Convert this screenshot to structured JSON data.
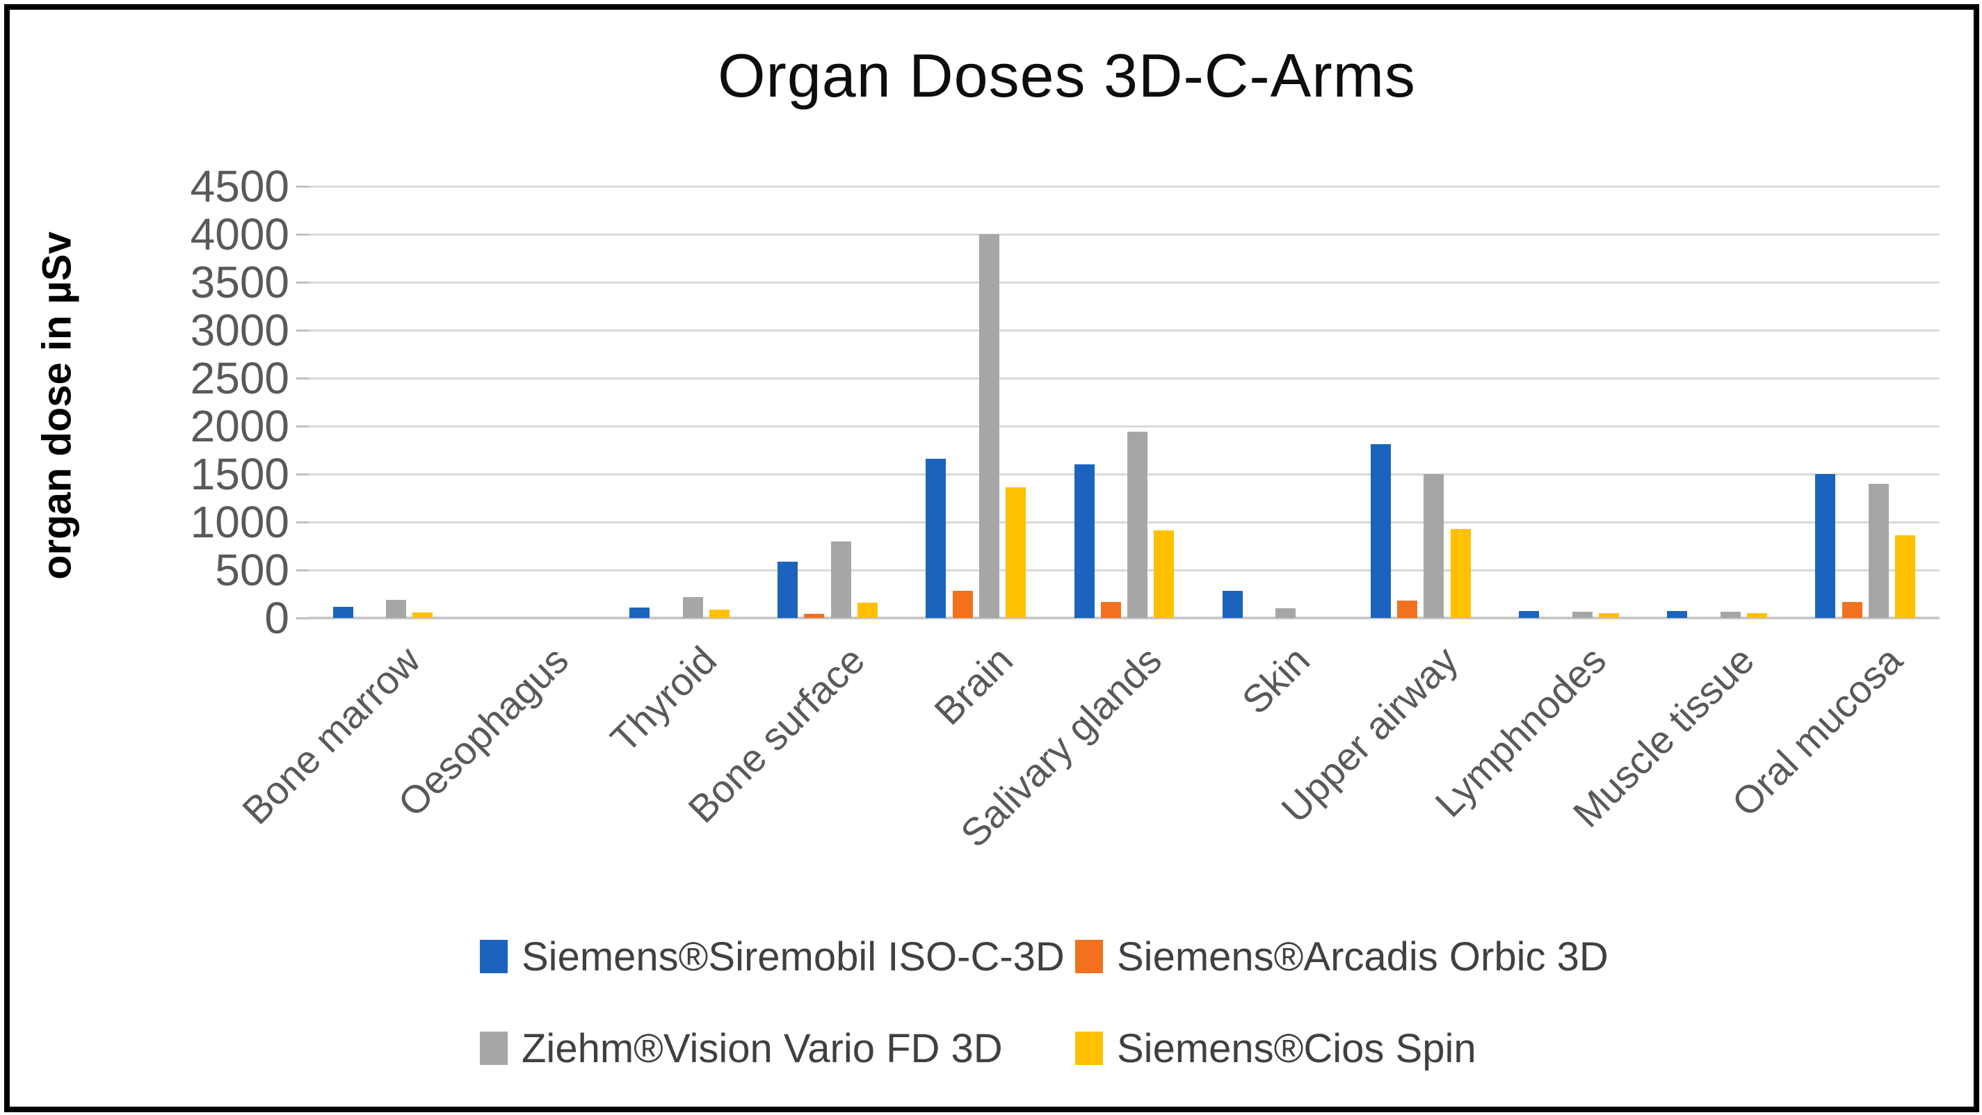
{
  "figure": {
    "title": "Organ Doses 3D-C-Arms",
    "y_axis_title": "organ dose in µSv"
  },
  "chart_data": {
    "type": "bar",
    "title": "Organ Doses 3D-C-Arms",
    "xlabel": "",
    "ylabel": "organ dose in µSv",
    "ylim": [
      0,
      4500
    ],
    "ytick_step": 500,
    "yticks": [
      0,
      500,
      1000,
      1500,
      2000,
      2500,
      3000,
      3500,
      4000,
      4500
    ],
    "grid": true,
    "legend_position": "bottom",
    "categories": [
      "Bone marrow",
      "Oesophagus",
      "Thyroid",
      "Bone surface",
      "Brain",
      "Salivary glands",
      "Skin",
      "Upper airway",
      "Lymphnodes",
      "Muscle tissue",
      "Oral mucosa"
    ],
    "series": [
      {
        "name": "Siemens®Siremobil ISO-C-3D",
        "color": "#1c63be",
        "values": [
          115,
          0,
          110,
          590,
          1660,
          1600,
          280,
          1810,
          70,
          70,
          1500
        ]
      },
      {
        "name": "Siemens®Arcadis Orbic 3D",
        "color": "#f1711f",
        "values": [
          0,
          0,
          0,
          45,
          280,
          170,
          0,
          180,
          0,
          0,
          170
        ]
      },
      {
        "name": "Ziehm®Vision Vario FD 3D",
        "color": "#a6a6a6",
        "values": [
          190,
          0,
          220,
          800,
          4000,
          1940,
          100,
          1500,
          65,
          65,
          1400
        ]
      },
      {
        "name": "Siemens®Cios Spin",
        "color": "#ffc000",
        "values": [
          55,
          0,
          90,
          160,
          1360,
          910,
          0,
          930,
          50,
          50,
          860
        ]
      }
    ],
    "axis_colors": {
      "gridline": "#d9d9d9",
      "baseline": "#c9c9c9",
      "tick_text": "#595959",
      "title_text": "#0d0d0d",
      "legend_text": "#404040"
    }
  }
}
